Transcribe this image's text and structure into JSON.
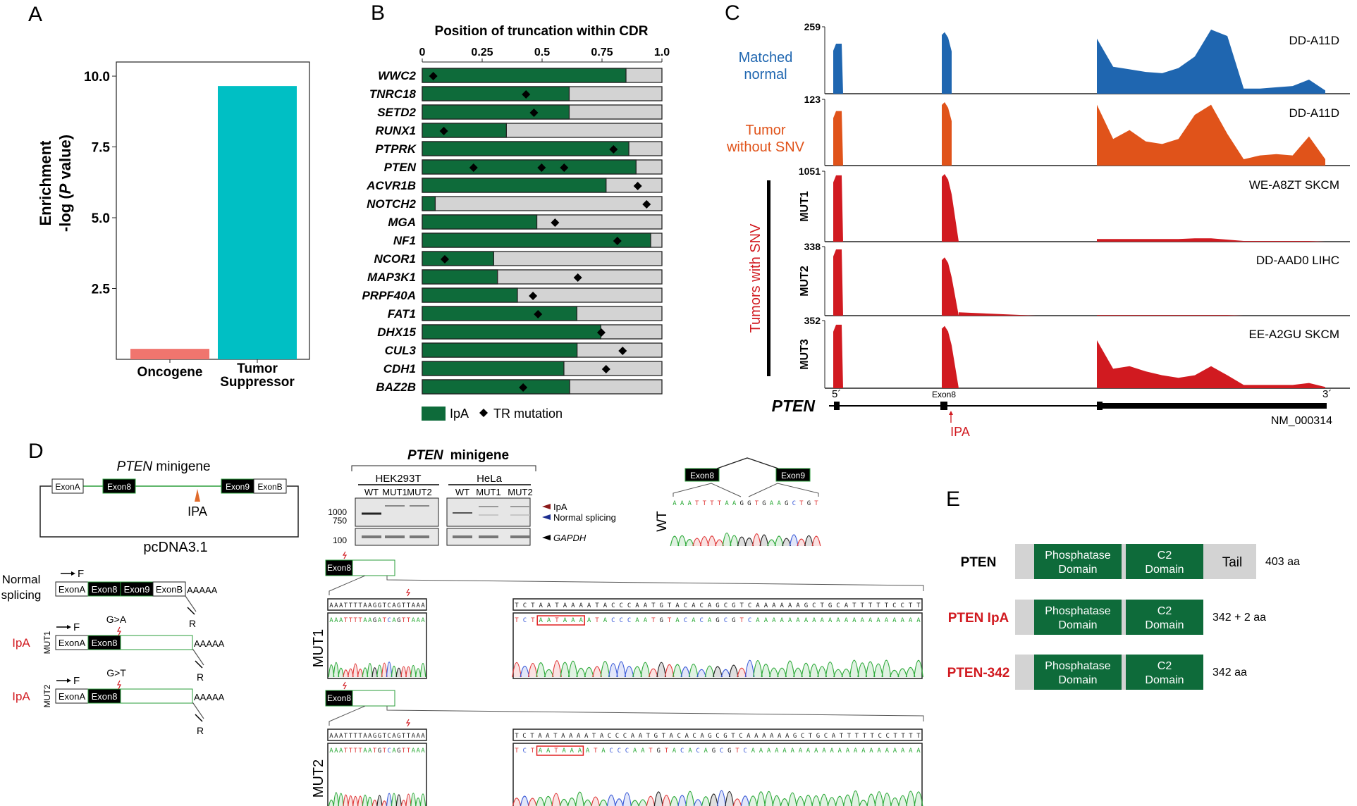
{
  "panels": {
    "A": {
      "letter": "A"
    },
    "B": {
      "letter": "B"
    },
    "C": {
      "letter": "C"
    },
    "D": {
      "letter": "D"
    },
    "E": {
      "letter": "E"
    }
  },
  "colors": {
    "oncogene": "#F0756E",
    "tumor_suppressor": "#00BFC4",
    "ipa_green": "#0E6B3A",
    "bar_bg": "#D3D3D3",
    "matched_normal": "#1F66B0",
    "tumor_without_snv": "#E0531A",
    "tumors_with_snv": "#D11A20",
    "ipa_red": "#D11A20"
  },
  "chart_data": [
    {
      "id": "A",
      "type": "bar",
      "title": "",
      "xlabel": "",
      "ylabel_line1": "Enrichment",
      "ylabel_line2_pre": "-log (",
      "ylabel_line2_ital": "P",
      "ylabel_line2_post": " value)",
      "categories": [
        "Oncogene",
        "Tumor Suppressor"
      ],
      "category_lines": [
        [
          "Oncogene"
        ],
        [
          "Tumor",
          "Suppressor"
        ]
      ],
      "values": [
        0.37,
        9.65
      ],
      "ylim": [
        0,
        10.3
      ],
      "yticks": [
        2.5,
        5.0,
        7.5,
        10.0
      ],
      "ytick_labels": [
        "2.5",
        "5.0",
        "7.5",
        "10.0"
      ],
      "grid": false
    },
    {
      "id": "B",
      "type": "bar",
      "orientation": "horizontal",
      "title": "Position of truncation within CDR",
      "xlim": [
        0,
        1.0
      ],
      "xticks": [
        0,
        0.25,
        0.5,
        0.75,
        1.0
      ],
      "xtick_labels": [
        "0",
        "0.25",
        "0.5",
        "0.75",
        "1.0"
      ],
      "legend": {
        "position": "bottom-left",
        "entries": [
          "IpA",
          "TR mutation"
        ]
      },
      "series": [
        {
          "name": "IpA",
          "kind": "bar"
        },
        {
          "name": "TR mutation",
          "kind": "diamond"
        }
      ],
      "categories": [
        "WWC2",
        "TNRC18",
        "SETD2",
        "RUNX1",
        "PTPRK",
        "PTEN",
        "ACVR1B",
        "NOTCH2",
        "MGA",
        "NF1",
        "NCOR1",
        "MAP3K1",
        "PRPF40A",
        "FAT1",
        "DHX15",
        "CUL3",
        "CDH1",
        "BAZ2B"
      ],
      "ipa_position": [
        0.85,
        0.613,
        0.613,
        0.351,
        0.862,
        0.892,
        0.767,
        0.054,
        0.478,
        0.953,
        0.298,
        0.314,
        0.397,
        0.645,
        0.745,
        0.646,
        0.591,
        0.615
      ],
      "tr_mutations": [
        [
          0.046
        ],
        [
          0.433
        ],
        [
          0.466
        ],
        [
          0.09
        ],
        [
          0.798
        ],
        [
          0.214,
          0.498,
          0.592
        ],
        [
          0.899
        ],
        [
          0.936
        ],
        [
          0.554
        ],
        [
          0.814
        ],
        [
          0.094
        ],
        [
          0.649
        ],
        [
          0.462
        ],
        [
          0.483
        ],
        [
          0.747
        ],
        [
          0.836
        ],
        [
          0.767
        ],
        [
          0.421
        ]
      ]
    },
    {
      "id": "C",
      "type": "area",
      "gene": "PTEN",
      "transcript": "NM_000314",
      "five_prime": "5´",
      "three_prime": "3´",
      "exon_label": "Exon8",
      "ipa_label": "IPA",
      "group_label": "Tumors with SNV",
      "tracks": [
        {
          "label_lines": [
            "Matched",
            "normal"
          ],
          "side_label": "",
          "sample": "DD-A11D",
          "ymax": 259,
          "color_key": "matched_normal",
          "exon1": 0.78,
          "exon8": 0.96,
          "ipa_region": 0.0,
          "last_exon": [
            0.86,
            0.42,
            0.38,
            0.34,
            0.32,
            0.4,
            0.58,
            1.0,
            0.9,
            0.08,
            0.08,
            0.1,
            0.12,
            0.22,
            0.05
          ]
        },
        {
          "label_lines": [
            "Tumor",
            "without SNV"
          ],
          "side_label": "",
          "sample": "DD-A11D",
          "ymax": 123,
          "color_key": "tumor_without_snv",
          "exon1": 0.86,
          "exon8": 1.0,
          "ipa_region": 0.0,
          "last_exon": [
            0.96,
            0.42,
            0.56,
            0.38,
            0.34,
            0.42,
            0.8,
            0.96,
            0.5,
            0.1,
            0.16,
            0.18,
            0.16,
            0.46,
            0.1
          ]
        },
        {
          "label_lines": [],
          "side_label": "MUT1",
          "sample": "WE-A8ZT SKCM",
          "ymax": 1051,
          "color_key": "tumors_with_snv",
          "exon1": 0.98,
          "exon8": 1.0,
          "ipa_region": 0.0,
          "last_exon": [
            0.04,
            0.04,
            0.04,
            0.04,
            0.04,
            0.04,
            0.05,
            0.05,
            0.03,
            0.01,
            0.01,
            0.01,
            0.01,
            0.01,
            0.0
          ]
        },
        {
          "label_lines": [],
          "side_label": "MUT2",
          "sample": "DD-AAD0 LIHC",
          "ymax": 338,
          "color_key": "tumors_with_snv",
          "exon1": 1.0,
          "exon8": 0.88,
          "ipa_region": 0.05,
          "last_exon": [
            0.01,
            0.01,
            0.01,
            0.01,
            0.01,
            0.01,
            0.01,
            0.01,
            0.01,
            0.0,
            0.0,
            0.0,
            0.0,
            0.0,
            0.0
          ]
        },
        {
          "label_lines": [],
          "side_label": "MUT3",
          "sample": "EE-A2GU SKCM",
          "ymax": 352,
          "color_key": "tumors_with_snv",
          "exon1": 0.98,
          "exon8": 0.96,
          "ipa_region": 0.0,
          "last_exon": [
            0.74,
            0.3,
            0.34,
            0.26,
            0.2,
            0.16,
            0.2,
            0.34,
            0.2,
            0.05,
            0.05,
            0.05,
            0.05,
            0.08,
            0.02
          ]
        }
      ]
    }
  ],
  "panel_d": {
    "minigene_title_ital": "PTEN",
    "minigene_title_rest": " minigene",
    "vector": "pcDNA3.1",
    "exons": {
      "a": "ExonA",
      "e8": "Exon8",
      "e9": "Exon9",
      "b": "ExonB"
    },
    "ipa": "IPA",
    "normal_splicing": [
      "Normal",
      "splicing"
    ],
    "ipa_label": "IpA",
    "mut1": "MUT1",
    "mut2": "MUT2",
    "g_a": "G>A",
    "g_t": "G>T",
    "polya": "AAAAA",
    "primer_f": "F",
    "primer_r": "R",
    "gel": {
      "title_ital": "PTEN",
      "title_rest": "minigene",
      "cell_lines": [
        "HEK293T",
        "HeLa"
      ],
      "lanes": [
        "WT",
        "MUT1",
        "MUT2",
        "WT",
        "MUT1",
        "MUT2"
      ],
      "markers": [
        "1000",
        "750",
        "100"
      ],
      "legend": [
        "IpA",
        "Normal splicing",
        "GAPDH"
      ]
    },
    "wt_junction": {
      "exon_left": "Exon8",
      "exon_right": "Exon9",
      "label": "WT",
      "sequence": "AAATTTTAAGGTGAAGCTGT"
    },
    "mut1_seq": {
      "label": "MUT1",
      "left_ref": "AAATTTTAAGGTCAGTTAAA",
      "left_read": "AAATTTTAAGATCAGTTAAA",
      "right_ref": "TCTAATAAAATACCCAATGTACACAGCGTCAAAAAAGCTGCATTTTTCCTT",
      "right_read": "TCTAATAAAATACCCAATGTACACAGCGTCAAAAAAAAAAAAAAAAAAAAA",
      "pas_motif": "AATAAA"
    },
    "mut2_seq": {
      "label": "MUT2",
      "left_ref": "AAATTTTAAGGTCAGTTAAA",
      "left_read": "AAATTTTAATGTCAGTTAAA",
      "right_ref": "TCTAATAAAATACCCAATGTACACAGCGTCAAAAAAGCTGCATTTTTCCTTTT",
      "right_read": "TCTAATAAAATACCCAATGTACACAGCGTCAAAAAAAAAAAAAAAAAAAAAA",
      "pas_motif": "AATAAA"
    }
  },
  "panel_e": {
    "proteins": [
      {
        "name": "PTEN",
        "name_color": "#000000",
        "domains": [
          "Phosphatase Domain",
          "C2 Domain"
        ],
        "tail": "Tail",
        "length": "403 aa"
      },
      {
        "name": "PTEN IpA",
        "name_color": "#D11A20",
        "domains": [
          "Phosphatase Domain",
          "C2 Domain"
        ],
        "tail": "",
        "length": "342 + 2 aa"
      },
      {
        "name": "PTEN-342",
        "name_color": "#D11A20",
        "domains": [
          "Phosphatase Domain",
          "C2 Domain"
        ],
        "tail": "",
        "length": "342 aa"
      }
    ]
  }
}
